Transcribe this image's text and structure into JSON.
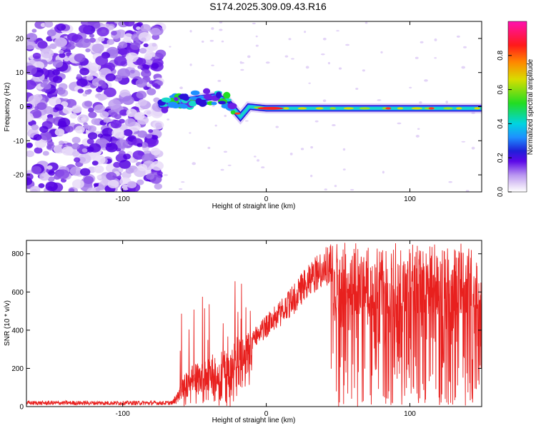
{
  "title": "S174.2025.309.09.43.R16",
  "chart_data": [
    {
      "type": "heatmap",
      "xlabel": "Height of straight line (km)",
      "ylabel": "Frequency (Hz)",
      "xlim": [
        -167,
        150
      ],
      "ylim": [
        -25,
        25
      ],
      "xticks": [
        -100,
        0,
        100
      ],
      "yticks": [
        -20,
        -10,
        0,
        10,
        20
      ],
      "colorbar": {
        "label": "Normalized spectral amplitude",
        "range": [
          0,
          1
        ],
        "ticks": [
          "0.0",
          "0.2",
          "0.4",
          "0.6",
          "0.8"
        ]
      },
      "features": {
        "noise_region_x": [
          -167,
          -73
        ],
        "signal_track": [
          {
            "x": -73,
            "y": 0.5
          },
          {
            "x": -60,
            "y": 1.5
          },
          {
            "x": -45,
            "y": 2.5
          },
          {
            "x": -35,
            "y": 3.0
          },
          {
            "x": -27,
            "y": 1.5
          },
          {
            "x": -22,
            "y": -1.0
          },
          {
            "x": -18,
            "y": -3.0
          },
          {
            "x": -12,
            "y": 0.0
          },
          {
            "x": 0,
            "y": -0.5
          },
          {
            "x": 40,
            "y": -0.5
          },
          {
            "x": 100,
            "y": -0.5
          },
          {
            "x": 150,
            "y": -0.5
          }
        ],
        "peak_x_range": [
          -6,
          12
        ]
      }
    },
    {
      "type": "line",
      "xlabel": "Height of straight line (km)",
      "ylabel": "SNR (10 * v/v)",
      "xlim": [
        -167,
        150
      ],
      "ylim": [
        0,
        870
      ],
      "xticks": [
        -100,
        0,
        100
      ],
      "yticks": [
        0,
        200,
        400,
        600,
        800
      ],
      "series": [
        {
          "color": "#e8201e",
          "envelope": [
            {
              "x": -167,
              "y": 20
            },
            {
              "x": -70,
              "y": 20
            },
            {
              "x": -63,
              "y": 60
            },
            {
              "x": -55,
              "y": 200
            },
            {
              "x": -40,
              "y": 260
            },
            {
              "x": -25,
              "y": 320
            },
            {
              "x": -10,
              "y": 400
            },
            {
              "x": 0,
              "y": 480
            },
            {
              "x": 10,
              "y": 560
            },
            {
              "x": 20,
              "y": 650
            },
            {
              "x": 30,
              "y": 760
            },
            {
              "x": 40,
              "y": 830
            },
            {
              "x": 45,
              "y": 850
            },
            {
              "x": 150,
              "y": 850
            }
          ],
          "noisy_region_x": [
            45,
            150
          ],
          "noisy_range": [
            0,
            860
          ]
        }
      ]
    }
  ]
}
